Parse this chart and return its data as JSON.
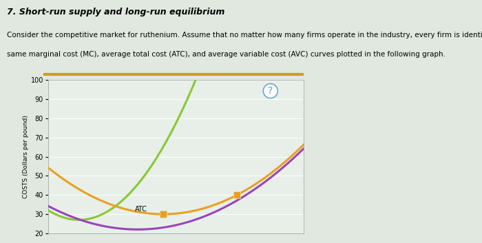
{
  "title": "7. Short-run supply and long-run equilibrium",
  "description_line1": "Consider the competitive market for ruthenium. Assume that no matter how many firms operate in the industry, every firm is identical and faces the",
  "description_line2": "same marginal cost (MC), average total cost (ATC), and average variable cost (AVC) curves plotted in the following graph.",
  "ylabel": "COSTS (Dollars per pound)",
  "ylim": [
    20,
    100
  ],
  "xlim": [
    0,
    10
  ],
  "yticks": [
    20,
    30,
    40,
    50,
    60,
    70,
    80,
    90,
    100
  ],
  "bg_color": "#e0e8e0",
  "plot_bg_color": "#e8efe8",
  "mc_color": "#88c832",
  "atc_color": "#e8a020",
  "avc_color": "#9944bb",
  "title_fontsize": 9,
  "body_fontsize": 7.5,
  "gold_bar_color": "#c8a020"
}
